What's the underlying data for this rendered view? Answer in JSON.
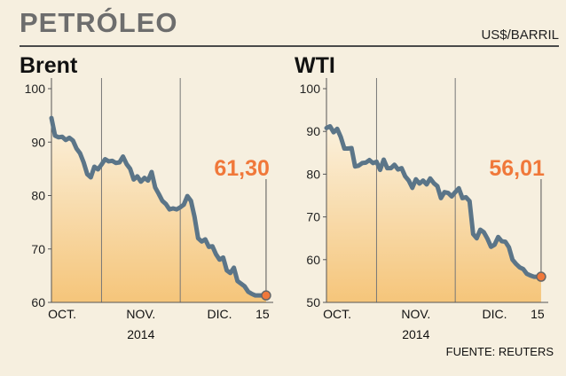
{
  "header": {
    "title": "PETRÓLEO",
    "unit": "US$/BARRIL",
    "source": "FUENTE: REUTERS"
  },
  "colors": {
    "background": "#f6efdf",
    "line": "#5b7588",
    "highlight": "#f0783a",
    "fill_top": "#f5c57a",
    "fill_bottom": "#fbf1dd",
    "axis": "#555555"
  },
  "chart_data": [
    {
      "type": "area",
      "title": "Brent",
      "ylim": [
        60,
        100
      ],
      "yticks": [
        100,
        90,
        80,
        70,
        60
      ],
      "xlim": [
        0,
        62
      ],
      "xticks": [
        {
          "label": "OCT.",
          "x": 3
        },
        {
          "label": "NOV.",
          "x": 25
        },
        {
          "label": "DIC.",
          "x": 47
        },
        {
          "label": "15",
          "x": 59
        }
      ],
      "x_sublabel": "2014",
      "month_dividers": [
        14,
        36
      ],
      "x": [
        0,
        1,
        2,
        3,
        4,
        5,
        6,
        7,
        8,
        9,
        10,
        11,
        12,
        13,
        14,
        15,
        16,
        17,
        18,
        19,
        20,
        21,
        22,
        23,
        24,
        25,
        26,
        27,
        28,
        29,
        30,
        31,
        32,
        33,
        34,
        35,
        36,
        37,
        38,
        39,
        40,
        41,
        42,
        43,
        44,
        45,
        46,
        47,
        48,
        49,
        50,
        51,
        52,
        53,
        54,
        55,
        56,
        57,
        58,
        59,
        60
      ],
      "values": [
        94.5,
        91.2,
        90.9,
        91.0,
        90.4,
        90.8,
        90.3,
        88.8,
        87.9,
        86.2,
        84.0,
        83.4,
        85.4,
        84.9,
        85.8,
        86.8,
        86.4,
        86.5,
        86.1,
        86.2,
        87.3,
        85.9,
        85.0,
        83.0,
        83.6,
        82.6,
        83.3,
        82.8,
        84.4,
        81.5,
        80.3,
        79.0,
        78.4,
        77.4,
        77.6,
        77.4,
        77.8,
        78.3,
        79.9,
        79.0,
        76.0,
        72.0,
        71.4,
        71.8,
        70.4,
        70.5,
        69.0,
        68.0,
        68.4,
        66.0,
        65.5,
        66.5,
        64.0,
        63.5,
        63.0,
        62.0,
        61.6,
        61.3,
        61.3,
        61.3,
        61.3
      ],
      "highlight": {
        "label": "61,30",
        "value": 61.3
      }
    },
    {
      "type": "area",
      "title": "WTI",
      "ylim": [
        50,
        100
      ],
      "yticks": [
        100,
        90,
        80,
        70,
        60,
        50
      ],
      "xlim": [
        0,
        62
      ],
      "xticks": [
        {
          "label": "OCT.",
          "x": 3
        },
        {
          "label": "NOV.",
          "x": 25
        },
        {
          "label": "DIC.",
          "x": 47
        },
        {
          "label": "15",
          "x": 59
        }
      ],
      "x_sublabel": "2014",
      "month_dividers": [
        14,
        36
      ],
      "x": [
        0,
        1,
        2,
        3,
        4,
        5,
        6,
        7,
        8,
        9,
        10,
        11,
        12,
        13,
        14,
        15,
        16,
        17,
        18,
        19,
        20,
        21,
        22,
        23,
        24,
        25,
        26,
        27,
        28,
        29,
        30,
        31,
        32,
        33,
        34,
        35,
        36,
        37,
        38,
        39,
        40,
        41,
        42,
        43,
        44,
        45,
        46,
        47,
        48,
        49,
        50,
        51,
        52,
        53,
        54,
        55,
        56,
        57,
        58,
        59,
        60
      ],
      "values": [
        90.8,
        91.2,
        89.8,
        90.6,
        88.7,
        86.0,
        86.0,
        86.1,
        81.8,
        82.0,
        82.6,
        82.7,
        83.3,
        82.6,
        82.9,
        81.0,
        83.4,
        81.4,
        81.4,
        82.2,
        81.1,
        81.4,
        79.5,
        78.5,
        76.8,
        78.8,
        77.8,
        78.5,
        77.6,
        79.0,
        77.9,
        77.2,
        74.4,
        75.8,
        75.6,
        74.8,
        75.8,
        76.7,
        74.4,
        74.6,
        73.7,
        66.0,
        65.0,
        67.0,
        66.4,
        64.9,
        63.0,
        63.5,
        65.3,
        64.3,
        64.2,
        62.9,
        60.0,
        59.0,
        58.2,
        57.8,
        56.7,
        56.3,
        56.0,
        56.0,
        56.01
      ],
      "highlight": {
        "label": "56,01",
        "value": 56.01
      }
    }
  ]
}
